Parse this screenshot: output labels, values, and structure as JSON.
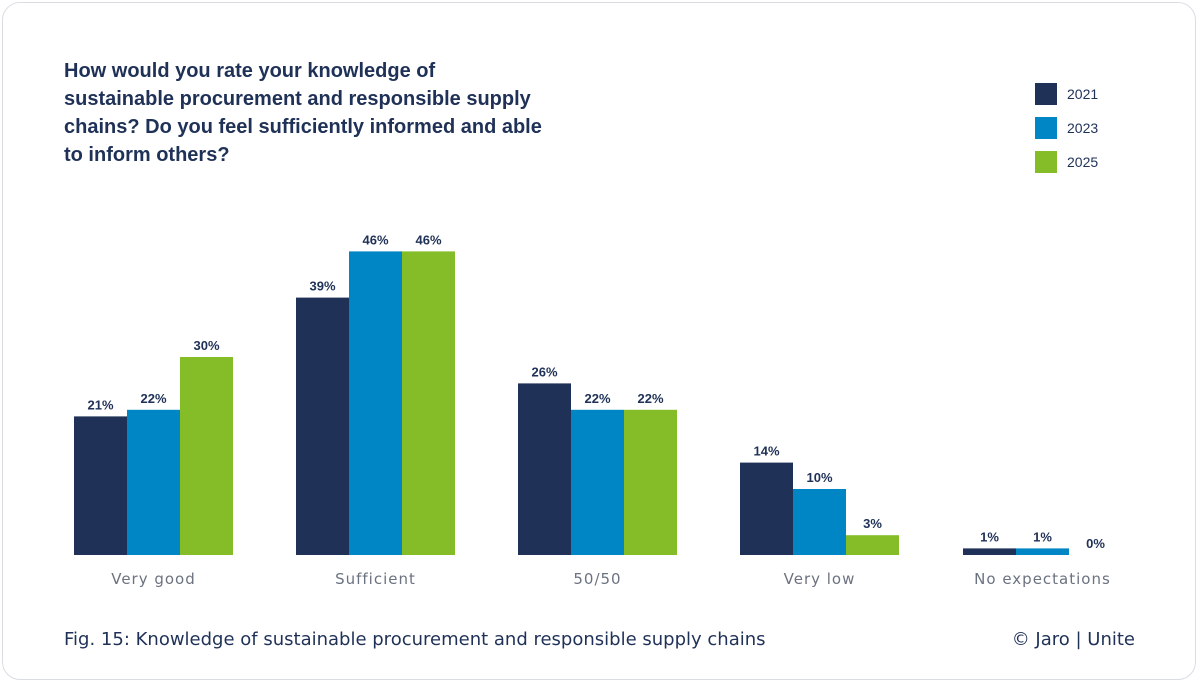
{
  "title": "How would you rate your knowledge of sustainable procurement and responsible supply chains? Do you feel sufficiently informed and able to inform others?",
  "caption": "Fig. 15: Knowledge of sustainable procurement and responsible supply chains",
  "credit": "© Jaro | Unite",
  "colors": {
    "text": "#1f3157",
    "axis_label": "#6b7280"
  },
  "chart_data": {
    "type": "bar",
    "categories": [
      "Very good",
      "Sufficient",
      "50/50",
      "Very low",
      "No expectations"
    ],
    "series": [
      {
        "name": "2021",
        "color": "#1f3157",
        "values": [
          21,
          39,
          26,
          14,
          1
        ]
      },
      {
        "name": "2023",
        "color": "#0086c5",
        "values": [
          22,
          46,
          22,
          10,
          1
        ]
      },
      {
        "name": "2025",
        "color": "#84bd28",
        "values": [
          30,
          46,
          22,
          3,
          0
        ]
      }
    ],
    "value_suffix": "%",
    "legend_position": "top-right",
    "grid": false,
    "ylim": [
      0,
      46
    ]
  }
}
